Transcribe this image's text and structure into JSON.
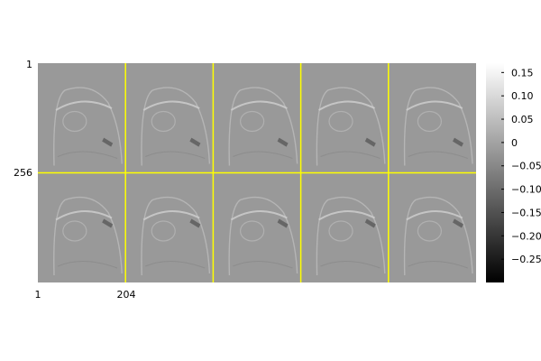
{
  "figure": {
    "kind": "image montage with colorbar",
    "colormap": "grayscale",
    "separator_color": "#ffff00",
    "background_color": "#999999",
    "grid": {
      "rows": 2,
      "cols": 5
    },
    "axis_ticks": {
      "y": [
        "1",
        "256"
      ],
      "x": [
        "1",
        "204"
      ]
    },
    "colorbar": {
      "range": [
        -0.3,
        0.17
      ],
      "ticks": [
        "0.15",
        "0.10",
        "0.05",
        "0",
        "−0.05",
        "−0.10",
        "−0.15",
        "−0.20",
        "−0.25"
      ],
      "tick_values": [
        0.15,
        0.1,
        0.05,
        0,
        -0.05,
        -0.1,
        -0.15,
        -0.2,
        -0.25
      ]
    }
  }
}
